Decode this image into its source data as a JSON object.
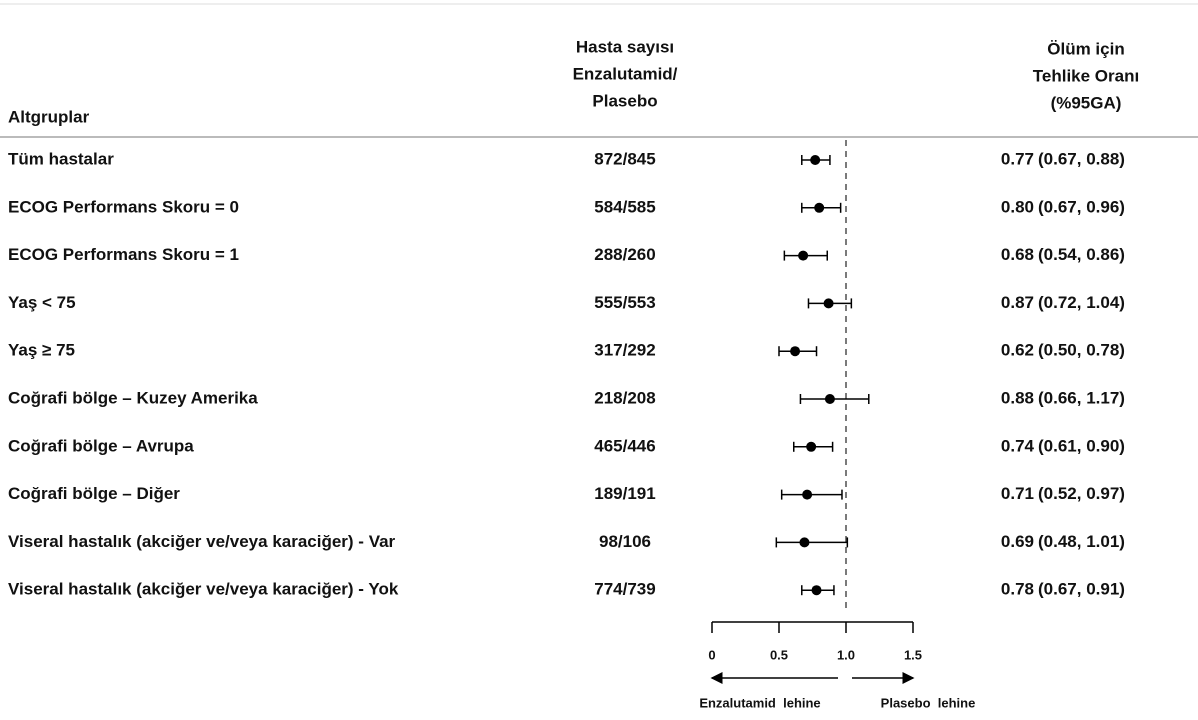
{
  "chart_data": {
    "type": "forest",
    "subgroup_header": "Altgruplar",
    "n_header": [
      "Hasta sayısı",
      "Enzalutamid/",
      "Plasebo"
    ],
    "hr_header": [
      "Ölüm için",
      "Tehlike Oranı",
      "(%95GA)"
    ],
    "categories": [
      "Tüm hastalar",
      "ECOG Performans Skoru = 0",
      "ECOG Performans Skoru = 1",
      "Yaş < 75",
      "Yaş ≥ 75",
      "Coğrafi bölge – Kuzey Amerika",
      "Coğrafi bölge – Avrupa",
      "Coğrafi bölge – Diğer",
      "Viseral hastalık (akciğer ve/veya karaciğer) - Var",
      "Viseral hastalık (akciğer ve/veya karaciğer) - Yok"
    ],
    "n_labels": [
      "872/845",
      "584/585",
      "288/260",
      "555/553",
      "317/292",
      "218/208",
      "465/446",
      "189/191",
      "98/106",
      "774/739"
    ],
    "values": [
      0.77,
      0.8,
      0.68,
      0.87,
      0.62,
      0.88,
      0.74,
      0.71,
      0.69,
      0.78
    ],
    "lower": [
      0.67,
      0.67,
      0.54,
      0.72,
      0.5,
      0.66,
      0.61,
      0.52,
      0.48,
      0.67
    ],
    "upper": [
      0.88,
      0.96,
      0.86,
      1.04,
      0.78,
      1.17,
      0.9,
      0.97,
      1.01,
      0.91
    ],
    "value_labels": [
      "0.77",
      "0.80",
      "0.68",
      "0.87",
      "0.62",
      "0.88",
      "0.74",
      "0.71",
      "0.69",
      "0.78"
    ],
    "ci_labels": [
      "(0.67, 0.88)",
      "(0.67, 0.96)",
      "(0.54, 0.86)",
      "(0.72, 1.04)",
      "(0.50, 0.78)",
      "(0.66, 1.17)",
      "(0.61, 0.90)",
      "(0.52, 0.97)",
      "(0.48, 1.01)",
      "(0.67, 0.91)"
    ],
    "xlim": [
      0,
      1.5
    ],
    "xticks": [
      0,
      0.5,
      {
        "value": 1,
        "label": "1.0"
      },
      1.5
    ],
    "ref_line": 1,
    "arrow_labels": [
      "Enzalutamid  lehine",
      "Plasebo  lehine"
    ],
    "color": "#000000"
  }
}
